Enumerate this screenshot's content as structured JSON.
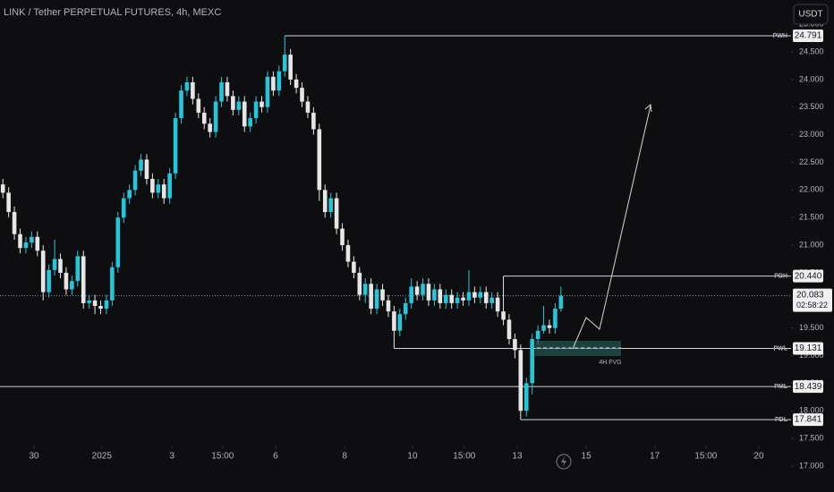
{
  "header": {
    "symbol": "LINK / Tether PERPETUAL FUTURES, 4h, MEXC",
    "currency_button": "USDT"
  },
  "chart_data": {
    "type": "candlestick",
    "open": [
      22.1,
      21.95,
      21.6,
      21.2,
      20.95,
      21.05,
      21.15,
      20.9,
      20.15,
      20.55,
      20.75,
      20.5,
      20.2,
      20.35,
      20.8,
      19.95,
      20.0,
      19.9,
      19.85,
      20.0,
      20.6,
      21.5,
      21.85,
      22.0,
      22.35,
      22.55,
      22.2,
      21.95,
      22.1,
      21.85,
      22.3,
      23.3,
      23.8,
      23.95,
      23.65,
      23.4,
      23.2,
      23.05,
      23.6,
      23.95,
      23.7,
      23.45,
      23.6,
      23.15,
      23.3,
      23.6,
      23.5,
      24.05,
      23.8,
      24.15,
      24.45,
      24.0,
      23.85,
      23.6,
      23.4,
      23.1,
      22.0,
      21.6,
      21.85,
      21.3,
      21.0,
      20.7,
      20.5,
      20.1,
      20.3,
      19.85,
      20.2,
      20.0,
      19.8,
      19.45,
      19.75,
      19.95,
      20.25,
      20.1,
      20.3,
      20.0,
      20.2,
      19.95,
      20.1,
      19.95,
      20.05,
      20.0,
      20.15,
      20.05,
      20.15,
      19.95,
      20.05,
      19.8,
      19.65,
      19.3,
      19.1,
      18.0,
      18.5,
      19.3,
      19.45,
      19.55,
      19.5,
      19.85
    ],
    "high": [
      22.2,
      22.05,
      21.7,
      21.3,
      21.15,
      21.25,
      21.25,
      21.0,
      20.65,
      21.1,
      20.85,
      20.6,
      20.45,
      20.9,
      20.9,
      20.1,
      20.1,
      20.0,
      20.1,
      20.7,
      21.6,
      21.95,
      22.1,
      22.45,
      22.65,
      22.65,
      22.3,
      22.2,
      22.2,
      22.4,
      23.4,
      23.9,
      24.05,
      24.05,
      23.75,
      23.5,
      23.3,
      23.7,
      24.05,
      24.05,
      23.8,
      23.7,
      23.7,
      23.4,
      23.7,
      23.7,
      24.15,
      24.15,
      24.25,
      24.791,
      24.55,
      24.1,
      23.95,
      23.7,
      23.5,
      23.2,
      22.1,
      21.95,
      21.95,
      21.4,
      21.1,
      20.8,
      20.6,
      20.4,
      20.4,
      20.3,
      20.3,
      20.1,
      19.9,
      19.85,
      20.05,
      20.4,
      20.35,
      20.4,
      20.4,
      20.3,
      20.3,
      20.2,
      20.2,
      20.15,
      20.15,
      20.55,
      20.25,
      20.25,
      20.25,
      20.15,
      20.15,
      20.44,
      19.75,
      19.4,
      19.2,
      18.6,
      19.4,
      19.55,
      19.9,
      19.65,
      19.95,
      20.25
    ],
    "low": [
      21.85,
      21.5,
      21.1,
      20.85,
      20.85,
      20.95,
      20.8,
      20.0,
      20.05,
      20.45,
      20.4,
      20.1,
      20.1,
      20.25,
      19.85,
      19.85,
      19.75,
      19.75,
      19.75,
      19.9,
      20.5,
      21.4,
      21.75,
      21.9,
      22.25,
      22.1,
      21.85,
      21.85,
      21.75,
      21.75,
      22.2,
      23.2,
      23.7,
      23.55,
      23.3,
      23.1,
      22.95,
      22.95,
      23.5,
      23.6,
      23.35,
      23.35,
      23.05,
      23.05,
      23.2,
      23.4,
      23.4,
      23.7,
      23.7,
      24.05,
      23.9,
      23.75,
      23.5,
      23.3,
      23.0,
      21.8,
      21.5,
      21.5,
      21.2,
      20.9,
      20.6,
      20.4,
      20.0,
      19.95,
      19.75,
      19.75,
      19.9,
      19.7,
      19.131,
      19.35,
      19.65,
      19.85,
      20.0,
      20.0,
      19.9,
      19.9,
      19.85,
      19.85,
      19.85,
      19.85,
      19.9,
      19.9,
      19.95,
      19.95,
      19.85,
      19.85,
      19.7,
      19.55,
      19.2,
      18.95,
      17.841,
      17.9,
      18.3,
      19.2,
      19.4,
      19.4,
      19.4,
      19.8
    ],
    "close": [
      21.95,
      21.6,
      21.2,
      20.95,
      21.05,
      21.15,
      20.9,
      20.15,
      20.55,
      20.75,
      20.5,
      20.2,
      20.35,
      20.8,
      19.95,
      20.0,
      19.9,
      19.85,
      20.0,
      20.6,
      21.5,
      21.85,
      22.0,
      22.35,
      22.55,
      22.2,
      21.95,
      22.1,
      21.85,
      22.3,
      23.3,
      23.8,
      23.95,
      23.65,
      23.4,
      23.2,
      23.05,
      23.6,
      23.95,
      23.7,
      23.45,
      23.6,
      23.15,
      23.3,
      23.6,
      23.5,
      24.05,
      23.8,
      24.15,
      24.45,
      24.0,
      23.85,
      23.6,
      23.4,
      23.1,
      22.0,
      21.6,
      21.85,
      21.3,
      21.0,
      20.7,
      20.5,
      20.1,
      20.3,
      19.85,
      20.2,
      20.0,
      19.8,
      19.45,
      19.75,
      19.95,
      20.25,
      20.1,
      20.3,
      20.0,
      20.2,
      19.95,
      20.1,
      19.95,
      20.05,
      20.0,
      20.15,
      20.05,
      20.15,
      19.95,
      20.05,
      19.8,
      19.65,
      19.3,
      19.1,
      18.0,
      18.5,
      19.3,
      19.45,
      19.55,
      19.5,
      19.85,
      20.083
    ],
    "up_color": "#26c6da",
    "down_color": "#e6e6e6",
    "xlim": [
      -0.5,
      137
    ],
    "ylim": [
      16.53,
      25.44
    ],
    "grid": false,
    "xticks": [
      {
        "value": 5.4,
        "label": "30"
      },
      {
        "value": 17.2,
        "label": "2025"
      },
      {
        "value": 29.4,
        "label": "3"
      },
      {
        "value": 38.2,
        "label": "15:00"
      },
      {
        "value": 47.4,
        "label": "6"
      },
      {
        "value": 59.4,
        "label": "8"
      },
      {
        "value": 71.2,
        "label": "10"
      },
      {
        "value": 80.2,
        "label": "15:00"
      },
      {
        "value": 89.4,
        "label": "13"
      },
      {
        "value": 101.4,
        "label": "15"
      },
      {
        "value": 113.3,
        "label": "17"
      },
      {
        "value": 122.2,
        "label": "15:00"
      },
      {
        "value": 131.4,
        "label": "20"
      }
    ],
    "yticks": [
      {
        "value": 17,
        "label": "17.000"
      },
      {
        "value": 17.5,
        "label": "17.500"
      },
      {
        "value": 18,
        "label": "18.000"
      },
      {
        "value": 18.5,
        "label": "18.500"
      },
      {
        "value": 19,
        "label": "19.000"
      },
      {
        "value": 19.5,
        "label": "19.500"
      },
      {
        "value": 20,
        "label": "20.000"
      },
      {
        "value": 20.5,
        "label": "20.500"
      },
      {
        "value": 21,
        "label": "21.000"
      },
      {
        "value": 21.5,
        "label": "21.500"
      },
      {
        "value": 22,
        "label": "22.000"
      },
      {
        "value": 22.5,
        "label": "22.500"
      },
      {
        "value": 23,
        "label": "23.000"
      },
      {
        "value": 23.5,
        "label": "23.500"
      },
      {
        "value": 24,
        "label": "24.000"
      },
      {
        "value": 24.5,
        "label": "24.500"
      },
      {
        "value": 25,
        "label": "25.000"
      }
    ],
    "levels": [
      {
        "name": "PWH",
        "value": 24.791,
        "start": 49
      },
      {
        "name": "PDH",
        "value": 20.44,
        "value_label": "20.440",
        "start": 87
      },
      {
        "name": "PWL",
        "value": 19.131,
        "start": 68
      },
      {
        "name": "PML",
        "value": 18.439
      },
      {
        "name": "PDL",
        "value": 17.841,
        "start": 90
      }
    ],
    "last_price": {
      "value": 20.083,
      "countdown": "02:58:22"
    },
    "fvg_label": "4H FVG"
  }
}
